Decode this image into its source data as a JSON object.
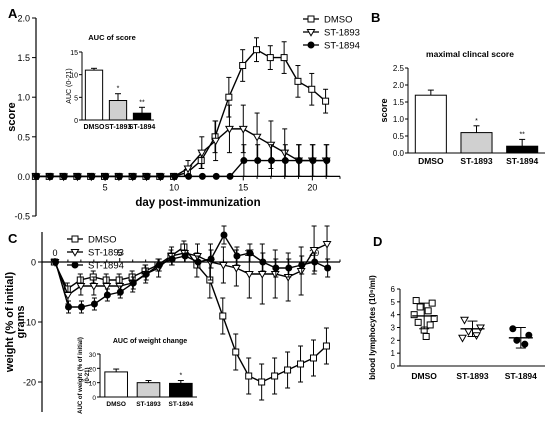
{
  "panels": {
    "A": "A",
    "B": "B",
    "C": "C",
    "D": "D"
  },
  "chart_data": [
    {
      "id": "A",
      "type": "line",
      "title": "",
      "xlabel": "day post-immunization",
      "ylabel": "score",
      "xlim": [
        0,
        22
      ],
      "ylim": [
        -0.5,
        2.0
      ],
      "xticks": [
        5,
        10,
        15,
        20
      ],
      "yticks": [
        -0.5,
        0.0,
        0.5,
        1.0,
        1.5,
        2.0
      ],
      "xtick_labels": [
        "5",
        "10",
        "15",
        "20"
      ],
      "ytick_labels": [
        "-0.5",
        "0.0",
        "0.5",
        "1.0",
        "1.5",
        "2.0"
      ],
      "legend_position": "top-right",
      "x": [
        0,
        1,
        2,
        3,
        4,
        5,
        6,
        7,
        8,
        9,
        10,
        11,
        12,
        13,
        14,
        15,
        16,
        17,
        18,
        19,
        20,
        21
      ],
      "series": [
        {
          "name": "DMSO",
          "marker": "square",
          "values": [
            0,
            0,
            0,
            0,
            0,
            0,
            0,
            0,
            0,
            0,
            0,
            0.05,
            0.2,
            0.5,
            1.0,
            1.4,
            1.6,
            1.5,
            1.5,
            1.2,
            1.1,
            0.95
          ],
          "errors": [
            0,
            0,
            0,
            0,
            0,
            0,
            0,
            0,
            0,
            0,
            0,
            0.05,
            0.1,
            0.2,
            0.25,
            0.2,
            0.15,
            0.15,
            0.2,
            0.2,
            0.2,
            0.15
          ]
        },
        {
          "name": "ST-1893",
          "marker": "triangle-down",
          "values": [
            0,
            0,
            0,
            0,
            0,
            0,
            0,
            0,
            0,
            0,
            0,
            0.1,
            0.3,
            0.45,
            0.6,
            0.6,
            0.5,
            0.4,
            0.3,
            0.2,
            0.2,
            0.2
          ],
          "errors": [
            0,
            0,
            0,
            0,
            0,
            0,
            0,
            0,
            0,
            0,
            0,
            0.1,
            0.2,
            0.25,
            0.3,
            0.3,
            0.3,
            0.3,
            0.3,
            0.2,
            0.2,
            0.2
          ]
        },
        {
          "name": "ST-1894",
          "marker": "circle",
          "values": [
            0,
            0,
            0,
            0,
            0,
            0,
            0,
            0,
            0,
            0,
            0,
            0,
            0,
            0,
            0,
            0.2,
            0.2,
            0.2,
            0.2,
            0.2,
            0.2,
            0.2
          ],
          "errors": [
            0,
            0,
            0,
            0,
            0,
            0,
            0,
            0,
            0,
            0,
            0,
            0,
            0,
            0,
            0,
            0.2,
            0.2,
            0.2,
            0.2,
            0.2,
            0.2,
            0.2
          ]
        }
      ]
    },
    {
      "id": "A-inset",
      "type": "bar",
      "title": "AUC of score",
      "ylabel": "AUC (0-21)",
      "ylim": [
        0,
        15
      ],
      "yticks": [
        0,
        5,
        10,
        15
      ],
      "ytick_labels": [
        "0",
        "5",
        "10",
        "15"
      ],
      "categories": [
        "DMSO",
        "ST-1893",
        "ST-1894"
      ],
      "values": [
        11,
        4.3,
        1.5
      ],
      "errors": [
        0.4,
        1.5,
        1.3
      ],
      "significance": [
        "",
        "*",
        "**"
      ],
      "fills": [
        "#ffffff",
        "#d0d0d0",
        "#000000"
      ]
    },
    {
      "id": "B",
      "type": "bar",
      "title": "maximal clincal score",
      "ylabel": "score",
      "ylim": [
        0,
        2.5
      ],
      "yticks": [
        0,
        0.5,
        1.0,
        1.5,
        2.0,
        2.5
      ],
      "ytick_labels": [
        "0.0",
        "0.5",
        "1.0",
        "1.5",
        "2.0",
        "2.5"
      ],
      "categories": [
        "DMSO",
        "ST-1893",
        "ST-1894"
      ],
      "values": [
        1.7,
        0.6,
        0.2
      ],
      "errors": [
        0.15,
        0.2,
        0.2
      ],
      "significance": [
        "",
        "*",
        "**"
      ],
      "fills": [
        "#ffffff",
        "#d0d0d0",
        "#000000"
      ]
    },
    {
      "id": "C",
      "type": "line",
      "title": "",
      "xlabel": "",
      "ylabel": "weight (% of initial)\ngrams",
      "xlim": [
        -1,
        22
      ],
      "ylim": [
        -25,
        5
      ],
      "xticks": [
        0,
        5,
        15,
        20
      ],
      "xtick_labels": [
        "0",
        "5",
        "15",
        "20"
      ],
      "yticks": [
        -20,
        -10,
        0
      ],
      "ytick_labels": [
        "-20",
        "-10",
        "0"
      ],
      "legend_position": "top-left",
      "x": [
        0,
        1,
        2,
        3,
        4,
        5,
        6,
        7,
        8,
        9,
        10,
        11,
        12,
        13,
        14,
        15,
        16,
        17,
        18,
        19,
        20,
        21
      ],
      "series": [
        {
          "name": "DMSO",
          "marker": "square",
          "values": [
            0,
            -4.5,
            -3,
            -2.5,
            -3,
            -3,
            -2.5,
            -1.5,
            -0.5,
            1,
            2.5,
            -0.5,
            -3,
            -9,
            -15,
            -19,
            -20,
            -19,
            -18,
            -17,
            -16,
            -14
          ],
          "errors": [
            0,
            1,
            1,
            1,
            1,
            1,
            1,
            1,
            1,
            1,
            1,
            2,
            3,
            3,
            3,
            3,
            3,
            3,
            3,
            3,
            3,
            3
          ]
        },
        {
          "name": "ST-1893",
          "marker": "triangle-down",
          "values": [
            0,
            -5.5,
            -4,
            -4,
            -4,
            -4,
            -3.5,
            -2,
            -1,
            1,
            1.5,
            1,
            0,
            -0.5,
            -1,
            -2,
            -2,
            -2,
            -2.5,
            -1.5,
            2,
            3
          ],
          "errors": [
            0,
            1.5,
            1.5,
            1.5,
            1.5,
            1.5,
            1.5,
            1.5,
            1.5,
            1.5,
            1.5,
            2,
            3,
            3,
            3,
            4,
            5,
            4,
            4,
            4,
            4,
            3
          ]
        },
        {
          "name": "ST-1894",
          "marker": "circle",
          "values": [
            0,
            -7.5,
            -7.5,
            -7,
            -5.5,
            -5,
            -3.5,
            -2,
            -0.5,
            0.5,
            1,
            0,
            0.5,
            4.5,
            1,
            1.5,
            0,
            -1,
            -1,
            -0.5,
            0,
            -1
          ],
          "errors": [
            0,
            1,
            1,
            1,
            1,
            1,
            1,
            1,
            1,
            1,
            1,
            1,
            1.5,
            1.5,
            1.5,
            1.5,
            1.5,
            1.5,
            1.5,
            1.5,
            1.5,
            1.5
          ]
        }
      ]
    },
    {
      "id": "C-inset",
      "type": "bar",
      "title": "AUC of weight change",
      "ylabel": "AUC of weight (% of initial)\n(0-21)",
      "ylim": [
        0,
        30
      ],
      "yticks": [
        0,
        10,
        20,
        30
      ],
      "ytick_labels": [
        "0",
        "10",
        "20",
        "30"
      ],
      "categories": [
        "DMSO",
        "ST-1893",
        "ST-1894"
      ],
      "values": [
        17.5,
        10,
        9.5
      ],
      "errors": [
        2,
        1.5,
        2
      ],
      "significance": [
        "",
        "",
        "*"
      ],
      "fills": [
        "#ffffff",
        "#d0d0d0",
        "#000000"
      ]
    },
    {
      "id": "D",
      "type": "scatter",
      "title": "",
      "ylabel": "blood lymphocytes (10⁶/ml)",
      "ylim": [
        0,
        6
      ],
      "yticks": [
        0,
        1,
        2,
        3,
        4,
        5,
        6
      ],
      "ytick_labels": [
        "0",
        "1",
        "2",
        "3",
        "4",
        "5",
        "6"
      ],
      "categories": [
        "DMSO",
        "ST-1893",
        "ST-1894"
      ],
      "groups": [
        {
          "name": "DMSO",
          "marker": "square",
          "points": [
            5.1,
            4.9,
            4.6,
            4.3,
            4.0,
            3.7,
            3.4,
            3.2,
            2.8,
            2.3
          ],
          "mean": 3.9,
          "sd": 1.0
        },
        {
          "name": "ST-1893",
          "marker": "triangle-down",
          "points": [
            3.6,
            3.0,
            2.7,
            2.4,
            2.2
          ],
          "mean": 2.9,
          "sd": 0.6
        },
        {
          "name": "ST-1894",
          "marker": "circle",
          "points": [
            2.9,
            2.4,
            2.0,
            1.7
          ],
          "mean": 2.2,
          "sd": 0.8
        }
      ]
    }
  ]
}
